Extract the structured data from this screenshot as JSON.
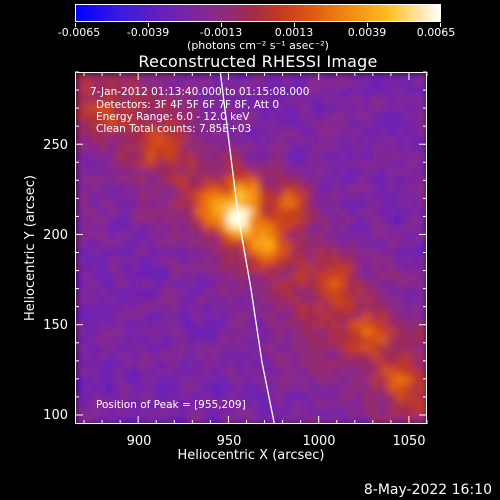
{
  "chart_data": {
    "type": "heatmap",
    "title": "Reconstructed RHESSI Image",
    "xlabel": "Heliocentric X (arcsec)",
    "ylabel": "Heliocentric Y (arcsec)",
    "xlim": [
      865,
      1060
    ],
    "ylim": [
      95,
      290
    ],
    "x_ticks": [
      "900",
      "950",
      "1000",
      "1050"
    ],
    "y_ticks": [
      "100",
      "150",
      "200",
      "250"
    ],
    "colorbar": {
      "ticks": [
        "-0.0065",
        "-0.0039",
        "-0.0013",
        "0.0013",
        "0.0039",
        "0.0065"
      ],
      "units": "(photons cm⁻² s⁻¹ asec⁻²)",
      "min": -0.0065,
      "max": 0.0065
    },
    "annotations": [
      "7-Jan-2012 01:13:40.000 to 01:15:08.000",
      "Detectors: 3F 4F 5F 6F 7F 8F, Att 0",
      "Energy Range: 6.0 - 12.0 keV",
      "Clean    Total counts: 7.85E+03"
    ],
    "peak_label": "Position of Peak = [955,209]",
    "peak": {
      "x": 955,
      "y": 209
    },
    "features": [
      {
        "x": 955,
        "y": 209,
        "intensity": 0.0065
      },
      {
        "x": 970,
        "y": 196,
        "intensity": 0.0045
      },
      {
        "x": 960,
        "y": 225,
        "intensity": 0.0042
      },
      {
        "x": 985,
        "y": 218,
        "intensity": 0.004
      },
      {
        "x": 940,
        "y": 215,
        "intensity": 0.0035
      },
      {
        "x": 1010,
        "y": 175,
        "intensity": 0.003
      },
      {
        "x": 1030,
        "y": 145,
        "intensity": 0.0028
      },
      {
        "x": 1045,
        "y": 120,
        "intensity": 0.0025
      },
      {
        "x": 910,
        "y": 250,
        "intensity": 0.0022
      },
      {
        "x": 880,
        "y": 265,
        "intensity": 0.002
      }
    ],
    "limb_curve": {
      "x": [
        945,
        950,
        955,
        962,
        968,
        975
      ],
      "y": [
        290,
        250,
        210,
        170,
        130,
        95
      ]
    }
  },
  "footer": "8-May-2022 16:10"
}
